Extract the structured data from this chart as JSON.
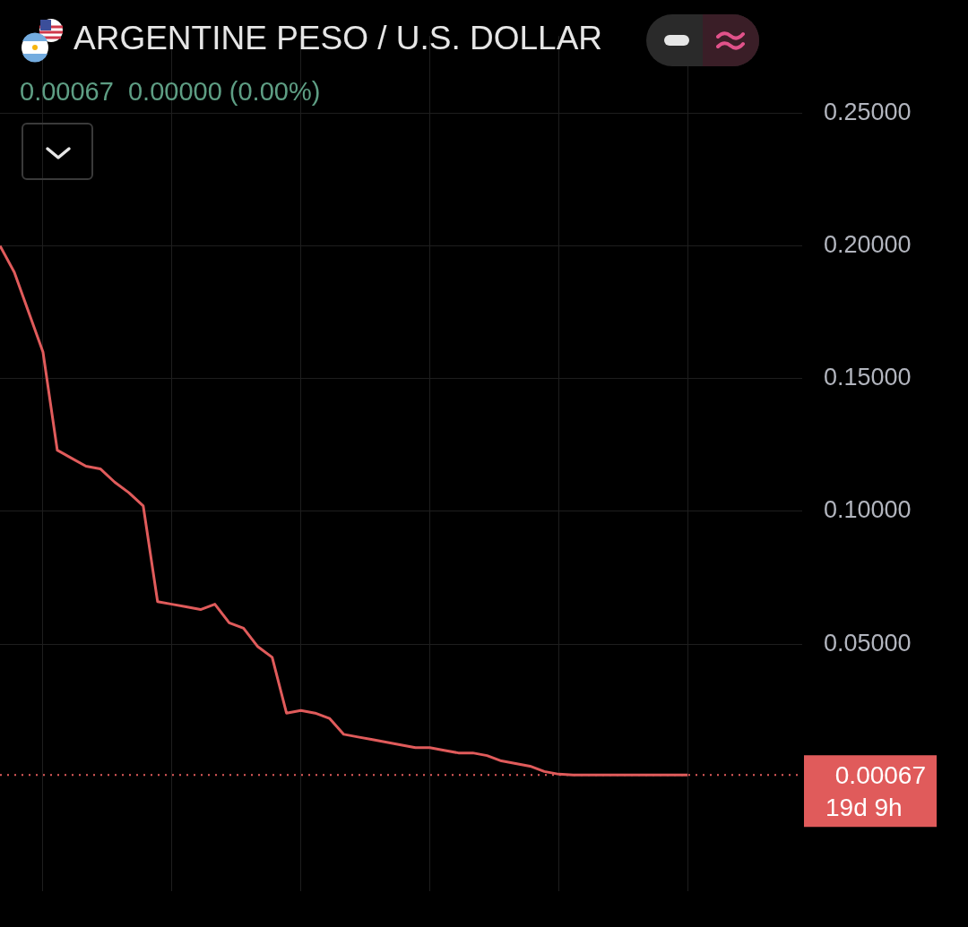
{
  "chart_data": {
    "type": "line",
    "title": "ARGENTINE PESO / U.S. DOLLAR",
    "subtitle": "0.00067  0.00000 (0.00%)",
    "categories": [
      null,
      null,
      null,
      null,
      null,
      null,
      null,
      null,
      null,
      null,
      null,
      null,
      null,
      null,
      null,
      null,
      null,
      null,
      null,
      null,
      null,
      null,
      null,
      null,
      null,
      null,
      null,
      null,
      null,
      null,
      null,
      null,
      null,
      null,
      null,
      null,
      null,
      null,
      null,
      null,
      null,
      null,
      null,
      null,
      null,
      null,
      null,
      null,
      null,
      null,
      null,
      null,
      null,
      null,
      null,
      null,
      null
    ],
    "series": [
      {
        "color": "#e05b5b",
        "values": [
          0.2,
          0.19,
          0.175,
          0.16,
          0.123,
          0.12,
          0.117,
          0.116,
          0.111,
          0.107,
          0.102,
          0.066,
          0.065,
          0.064,
          0.063,
          0.065,
          0.058,
          0.056,
          0.049,
          0.045,
          0.024,
          0.025,
          0.024,
          0.022,
          0.016,
          0.015,
          0.014,
          0.013,
          0.012,
          0.011,
          0.011,
          0.01,
          0.009,
          0.009,
          0.008,
          0.006,
          0.005,
          0.004,
          0.002,
          0.001,
          0.00067,
          0.00067,
          0.00067,
          0.00067,
          0.00067,
          0.00067,
          0.00067,
          0.00067,
          0.00067,
          null,
          null,
          null,
          null,
          null,
          null,
          null,
          null
        ]
      }
    ],
    "ylim": [
      -0.043,
      0.279
    ],
    "yticks": [
      {
        "value": 0.05,
        "label": "0.05000"
      },
      {
        "value": 0.1,
        "label": "0.10000"
      },
      {
        "value": 0.15,
        "label": "0.15000"
      },
      {
        "value": 0.2,
        "label": "0.20000"
      },
      {
        "value": 0.25,
        "label": "0.25000"
      }
    ],
    "tick_labels": "y",
    "grid": true,
    "legend": false,
    "marker": "none",
    "line_style": "solid",
    "ref_lines": [
      {
        "axis": "y",
        "value": 0.00067,
        "label": "0.00067",
        "color": "#e05b5b",
        "line_style": "dotted"
      }
    ],
    "annotations": [
      "19d 9h"
    ]
  }
}
